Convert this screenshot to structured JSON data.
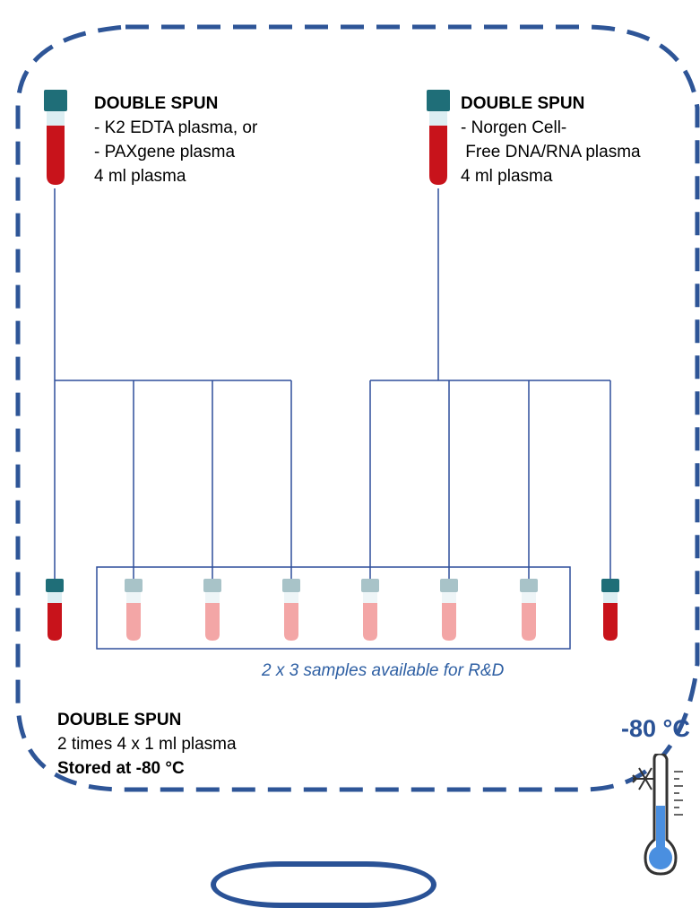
{
  "colors": {
    "frame": "#2e5597",
    "line": "#2f4f9b",
    "tube_full": "#c8131b",
    "tube_light": "#f3a6a6",
    "cap_dark": "#1f6e78",
    "cap_light": "#a8c3c8",
    "caption": "#2e5fa3",
    "thermometer_fill": "#4a8fe0"
  },
  "source_left": {
    "title": "DOUBLE SPUN",
    "line1": "- K2 EDTA plasma, or",
    "line2": "- PAXgene plasma",
    "line3": "4 ml plasma"
  },
  "source_right": {
    "title": "DOUBLE SPUN",
    "line1": "- Norgen Cell-",
    "line2": " Free DNA/RNA plasma",
    "line3": "4 ml plasma"
  },
  "rd_caption": "2 x 3 samples available for R&D",
  "footer": {
    "title": "DOUBLE SPUN",
    "line1": "2 times 4 x 1 ml plasma",
    "line2": "Stored at -80 °C"
  },
  "temperature_label": "-80 °C",
  "icons": {
    "tube": "blood-tube-icon",
    "thermometer": "thermometer-snowflake-icon"
  }
}
